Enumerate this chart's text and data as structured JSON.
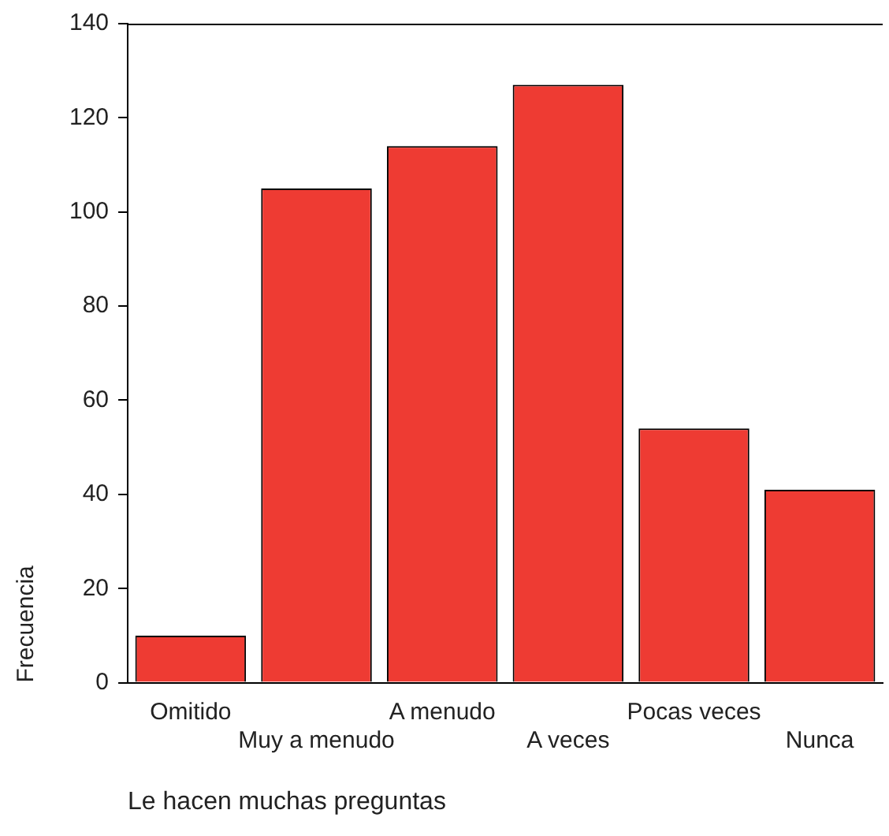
{
  "chart_data": {
    "type": "bar",
    "xlabel": "Le hacen muchas preguntas",
    "ylabel": "Frecuencia",
    "categories": [
      "Omitido",
      "Muy a menudo",
      "A menudo",
      "A veces",
      "Pocas veces",
      "Nunca"
    ],
    "values": [
      10,
      105,
      114,
      127,
      54,
      41
    ],
    "color": "#ee3b33",
    "ylim": [
      0,
      140
    ],
    "yticks": [
      0,
      20,
      40,
      60,
      80,
      100,
      120,
      140
    ],
    "grid": false,
    "legend": false
  }
}
